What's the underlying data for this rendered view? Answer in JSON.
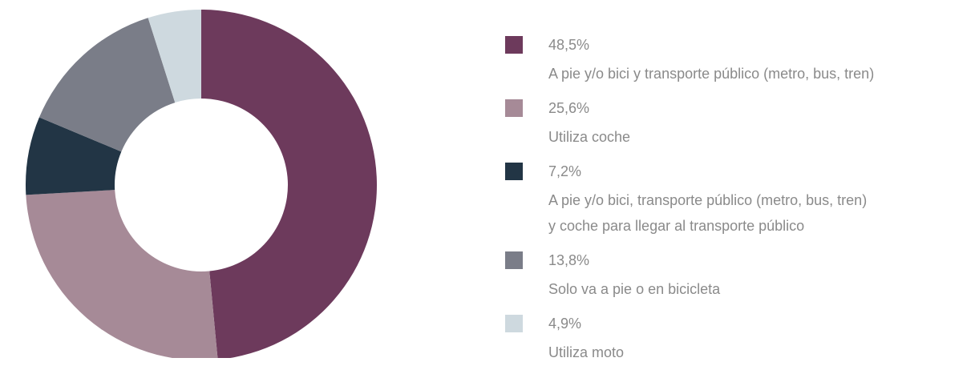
{
  "chart_data": {
    "type": "donut",
    "categories": [
      "A pie y/o bici y transporte público (metro, bus, tren)",
      "Utiliza coche",
      "A pie y/o bici, transporte público (metro, bus, tren) y coche para llegar al transporte público",
      "Solo va a pie o en bicicleta",
      "Utiliza moto"
    ],
    "values": [
      48.5,
      25.6,
      7.2,
      13.8,
      4.9
    ],
    "value_labels": [
      "48,5%",
      "25,6%",
      "7,2%",
      "13,8%",
      "4,9%"
    ],
    "colors": [
      "#6d3a5c",
      "#a68a97",
      "#223545",
      "#7a7d88",
      "#ced9df"
    ]
  }
}
